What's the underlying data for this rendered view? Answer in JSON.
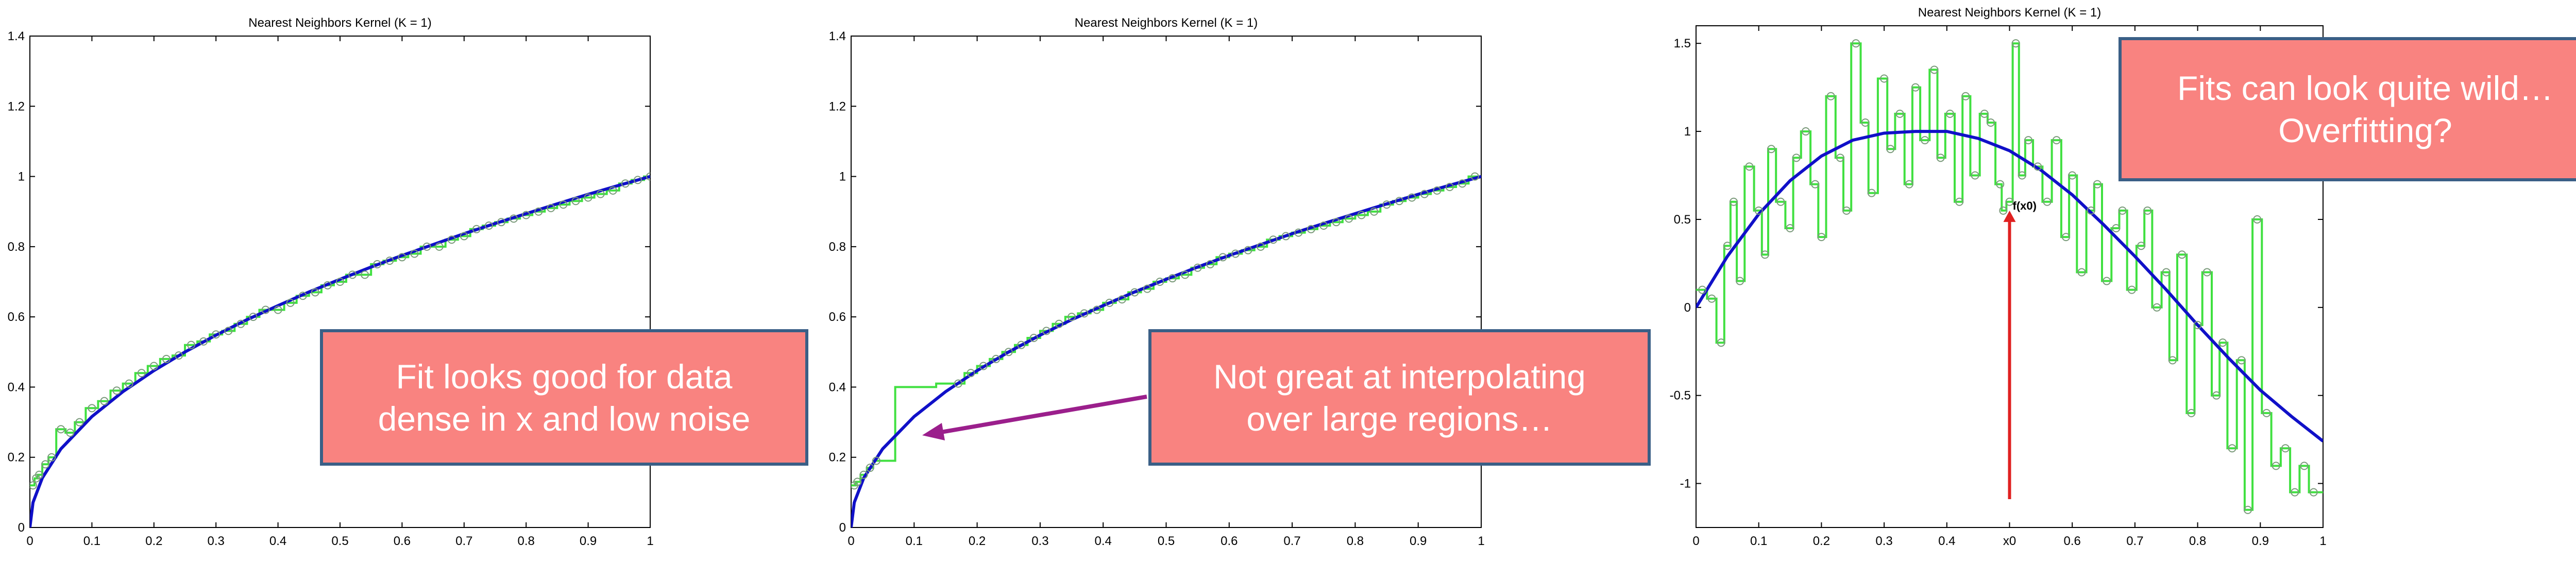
{
  "chart_data": [
    {
      "type": "line",
      "title": "Nearest Neighbors Kernel (K = 1)",
      "xlim": [
        0,
        1
      ],
      "ylim": [
        0,
        1.4
      ],
      "xticks": [
        "0",
        "0.1",
        "0.2",
        "0.3",
        "0.4",
        "0.5",
        "0.6",
        "0.7",
        "0.8",
        "0.9",
        "1"
      ],
      "yticks": [
        "0",
        "0.2",
        "0.4",
        "0.6",
        "0.8",
        "1",
        "1.2",
        "1.4"
      ],
      "grid": false,
      "series": [
        {
          "role": "true-function",
          "color": "#1010c8",
          "x": [
            0,
            0.005,
            0.02,
            0.05,
            0.1,
            0.15,
            0.2,
            0.25,
            0.3,
            0.35,
            0.4,
            0.45,
            0.5,
            0.55,
            0.6,
            0.65,
            0.7,
            0.75,
            0.8,
            0.85,
            0.9,
            0.95,
            1.0
          ],
          "y": [
            0,
            0.071,
            0.141,
            0.224,
            0.316,
            0.387,
            0.447,
            0.5,
            0.548,
            0.592,
            0.632,
            0.671,
            0.707,
            0.742,
            0.775,
            0.806,
            0.837,
            0.866,
            0.894,
            0.922,
            0.949,
            0.975,
            1.0
          ]
        },
        {
          "role": "observations",
          "color": "#40e040",
          "x": [
            0.005,
            0.01,
            0.015,
            0.025,
            0.035,
            0.05,
            0.065,
            0.08,
            0.1,
            0.12,
            0.14,
            0.16,
            0.18,
            0.2,
            0.22,
            0.24,
            0.26,
            0.28,
            0.3,
            0.32,
            0.34,
            0.36,
            0.38,
            0.4,
            0.42,
            0.44,
            0.46,
            0.48,
            0.5,
            0.52,
            0.54,
            0.56,
            0.58,
            0.6,
            0.62,
            0.64,
            0.66,
            0.68,
            0.7,
            0.72,
            0.74,
            0.76,
            0.78,
            0.8,
            0.82,
            0.84,
            0.86,
            0.88,
            0.9,
            0.92,
            0.94,
            0.96,
            0.98,
            1.0
          ],
          "y": [
            0.12,
            0.14,
            0.15,
            0.18,
            0.2,
            0.28,
            0.27,
            0.3,
            0.34,
            0.36,
            0.39,
            0.41,
            0.44,
            0.46,
            0.48,
            0.49,
            0.52,
            0.53,
            0.55,
            0.56,
            0.58,
            0.6,
            0.62,
            0.62,
            0.64,
            0.66,
            0.67,
            0.69,
            0.7,
            0.72,
            0.72,
            0.75,
            0.76,
            0.77,
            0.78,
            0.8,
            0.8,
            0.82,
            0.83,
            0.85,
            0.86,
            0.87,
            0.88,
            0.89,
            0.9,
            0.91,
            0.92,
            0.93,
            0.94,
            0.95,
            0.96,
            0.98,
            0.99,
            1.0
          ]
        },
        {
          "role": "fit",
          "color": "#40e040",
          "step": true,
          "x": [
            0.005,
            0.01,
            0.015,
            0.025,
            0.035,
            0.05,
            0.065,
            0.08,
            0.1,
            0.12,
            0.14,
            0.16,
            0.18,
            0.2,
            0.22,
            0.24,
            0.26,
            0.28,
            0.3,
            0.32,
            0.34,
            0.36,
            0.38,
            0.4,
            0.42,
            0.44,
            0.46,
            0.48,
            0.5,
            0.52,
            0.54,
            0.56,
            0.58,
            0.6,
            0.62,
            0.64,
            0.66,
            0.68,
            0.7,
            0.72,
            0.74,
            0.76,
            0.78,
            0.8,
            0.82,
            0.84,
            0.86,
            0.88,
            0.9,
            0.92,
            0.94,
            0.96,
            0.98,
            1.0
          ],
          "y": [
            0.12,
            0.14,
            0.15,
            0.18,
            0.2,
            0.28,
            0.27,
            0.3,
            0.34,
            0.36,
            0.39,
            0.41,
            0.44,
            0.46,
            0.48,
            0.49,
            0.52,
            0.53,
            0.55,
            0.56,
            0.58,
            0.6,
            0.62,
            0.62,
            0.64,
            0.66,
            0.67,
            0.69,
            0.7,
            0.72,
            0.72,
            0.75,
            0.76,
            0.77,
            0.78,
            0.8,
            0.8,
            0.82,
            0.83,
            0.85,
            0.86,
            0.87,
            0.88,
            0.89,
            0.9,
            0.91,
            0.92,
            0.93,
            0.94,
            0.95,
            0.96,
            0.98,
            0.99,
            1.0
          ]
        }
      ]
    },
    {
      "type": "line",
      "title": "Nearest Neighbors Kernel (K = 1)",
      "xlim": [
        0,
        1
      ],
      "ylim": [
        0,
        1.4
      ],
      "xticks": [
        "0",
        "0.1",
        "0.2",
        "0.3",
        "0.4",
        "0.5",
        "0.6",
        "0.7",
        "0.8",
        "0.9",
        "1"
      ],
      "yticks": [
        "0",
        "0.2",
        "0.4",
        "0.6",
        "0.8",
        "1",
        "1.2",
        "1.4"
      ],
      "grid": false,
      "series": [
        {
          "role": "true-function",
          "color": "#1010c8",
          "x": [
            0,
            0.005,
            0.02,
            0.05,
            0.1,
            0.15,
            0.2,
            0.25,
            0.3,
            0.35,
            0.4,
            0.45,
            0.5,
            0.55,
            0.6,
            0.65,
            0.7,
            0.75,
            0.8,
            0.85,
            0.9,
            0.95,
            1.0
          ],
          "y": [
            0,
            0.071,
            0.141,
            0.224,
            0.316,
            0.387,
            0.447,
            0.5,
            0.548,
            0.592,
            0.632,
            0.671,
            0.707,
            0.742,
            0.775,
            0.806,
            0.837,
            0.866,
            0.894,
            0.922,
            0.949,
            0.975,
            1.0
          ]
        },
        {
          "role": "observations",
          "color": "#40e040",
          "x": [
            0.005,
            0.01,
            0.02,
            0.03,
            0.04,
            0.17,
            0.19,
            0.21,
            0.23,
            0.25,
            0.27,
            0.29,
            0.31,
            0.33,
            0.35,
            0.37,
            0.39,
            0.41,
            0.43,
            0.45,
            0.47,
            0.49,
            0.51,
            0.53,
            0.55,
            0.57,
            0.59,
            0.61,
            0.63,
            0.65,
            0.67,
            0.69,
            0.71,
            0.73,
            0.75,
            0.77,
            0.79,
            0.81,
            0.83,
            0.85,
            0.87,
            0.89,
            0.91,
            0.93,
            0.95,
            0.97,
            0.99
          ],
          "y": [
            0.12,
            0.13,
            0.15,
            0.17,
            0.19,
            0.41,
            0.44,
            0.46,
            0.48,
            0.5,
            0.52,
            0.54,
            0.56,
            0.58,
            0.6,
            0.61,
            0.62,
            0.64,
            0.65,
            0.67,
            0.68,
            0.7,
            0.71,
            0.72,
            0.74,
            0.75,
            0.77,
            0.78,
            0.79,
            0.8,
            0.82,
            0.83,
            0.84,
            0.85,
            0.86,
            0.87,
            0.88,
            0.89,
            0.9,
            0.92,
            0.93,
            0.94,
            0.95,
            0.96,
            0.97,
            0.98,
            1.0
          ]
        },
        {
          "role": "fit",
          "color": "#40e040",
          "step": true,
          "x": [
            0.005,
            0.01,
            0.02,
            0.03,
            0.04,
            0.1,
            0.17,
            0.19,
            0.21,
            0.23,
            0.25,
            0.27,
            0.29,
            0.31,
            0.33,
            0.35,
            0.37,
            0.39,
            0.41,
            0.43,
            0.45,
            0.47,
            0.49,
            0.51,
            0.53,
            0.55,
            0.57,
            0.59,
            0.61,
            0.63,
            0.65,
            0.67,
            0.69,
            0.71,
            0.73,
            0.75,
            0.77,
            0.79,
            0.81,
            0.83,
            0.85,
            0.87,
            0.89,
            0.91,
            0.93,
            0.95,
            0.97,
            0.99
          ],
          "y": [
            0.12,
            0.13,
            0.15,
            0.17,
            0.19,
            0.4,
            0.41,
            0.44,
            0.46,
            0.48,
            0.5,
            0.52,
            0.54,
            0.56,
            0.58,
            0.6,
            0.61,
            0.62,
            0.64,
            0.65,
            0.67,
            0.68,
            0.7,
            0.71,
            0.72,
            0.74,
            0.75,
            0.77,
            0.78,
            0.79,
            0.8,
            0.82,
            0.83,
            0.84,
            0.85,
            0.86,
            0.87,
            0.88,
            0.89,
            0.9,
            0.92,
            0.93,
            0.94,
            0.95,
            0.96,
            0.97,
            0.98,
            1.0
          ]
        }
      ]
    },
    {
      "type": "line",
      "title": "Nearest Neighbors Kernel (K = 1)",
      "xlim": [
        0,
        1
      ],
      "ylim": [
        -1.25,
        1.6
      ],
      "xticks": [
        "0",
        "0.1",
        "0.2",
        "0.3",
        "0.4",
        "x0",
        "0.6",
        "0.7",
        "0.8",
        "0.9",
        "1"
      ],
      "yticks": [
        "-1",
        "-0.5",
        "0",
        "0.5",
        "1",
        "1.5"
      ],
      "grid": false,
      "query_point": {
        "x": 0.5,
        "y": 0.55,
        "label": "f(x0)",
        "color": "#e02020"
      },
      "series": [
        {
          "role": "true-function",
          "color": "#1010c8",
          "x": [
            0,
            0.05,
            0.1,
            0.15,
            0.2,
            0.25,
            0.3,
            0.35,
            0.4,
            0.45,
            0.5,
            0.55,
            0.6,
            0.65,
            0.7,
            0.75,
            0.8,
            0.85,
            0.9,
            0.95,
            1.0
          ],
          "y": [
            0,
            0.29,
            0.53,
            0.72,
            0.86,
            0.95,
            0.99,
            1.0,
            1.0,
            0.96,
            0.89,
            0.78,
            0.64,
            0.47,
            0.29,
            0.1,
            -0.1,
            -0.29,
            -0.47,
            -0.62,
            -0.76
          ]
        },
        {
          "role": "observations",
          "color": "#40e040",
          "x": [
            0.01,
            0.025,
            0.04,
            0.05,
            0.06,
            0.07,
            0.085,
            0.1,
            0.11,
            0.12,
            0.135,
            0.15,
            0.16,
            0.175,
            0.19,
            0.2,
            0.215,
            0.23,
            0.24,
            0.255,
            0.27,
            0.28,
            0.3,
            0.31,
            0.325,
            0.34,
            0.35,
            0.365,
            0.38,
            0.39,
            0.405,
            0.42,
            0.43,
            0.445,
            0.46,
            0.47,
            0.485,
            0.49,
            0.5,
            0.51,
            0.52,
            0.53,
            0.545,
            0.56,
            0.575,
            0.59,
            0.6,
            0.615,
            0.63,
            0.64,
            0.655,
            0.67,
            0.68,
            0.695,
            0.71,
            0.72,
            0.735,
            0.75,
            0.76,
            0.775,
            0.79,
            0.8,
            0.815,
            0.83,
            0.84,
            0.855,
            0.87,
            0.88,
            0.895,
            0.91,
            0.925,
            0.94,
            0.955,
            0.97,
            0.985
          ],
          "y": [
            0.1,
            0.05,
            -0.2,
            0.35,
            0.6,
            0.15,
            0.8,
            0.55,
            0.3,
            0.9,
            0.6,
            0.45,
            0.85,
            1.0,
            0.7,
            0.4,
            1.2,
            0.85,
            0.55,
            1.5,
            1.05,
            0.65,
            1.3,
            0.9,
            1.1,
            0.7,
            1.25,
            0.95,
            1.35,
            0.85,
            1.1,
            0.6,
            1.2,
            0.75,
            1.1,
            1.05,
            0.7,
            0.55,
            0.6,
            1.5,
            0.75,
            0.95,
            0.8,
            0.6,
            0.95,
            0.4,
            0.75,
            0.2,
            0.55,
            0.7,
            0.15,
            0.45,
            0.55,
            0.1,
            0.35,
            0.55,
            0.0,
            0.2,
            -0.3,
            0.3,
            -0.6,
            -0.1,
            0.2,
            -0.5,
            -0.2,
            -0.8,
            -0.3,
            -1.15,
            0.5,
            -0.6,
            -0.9,
            -0.8,
            -1.05,
            -0.9,
            -1.05
          ]
        },
        {
          "role": "fit",
          "color": "#40e040",
          "step": true,
          "x": [
            0.01,
            0.025,
            0.04,
            0.05,
            0.06,
            0.07,
            0.085,
            0.1,
            0.11,
            0.12,
            0.135,
            0.15,
            0.16,
            0.175,
            0.19,
            0.2,
            0.215,
            0.23,
            0.24,
            0.255,
            0.27,
            0.28,
            0.3,
            0.31,
            0.325,
            0.34,
            0.35,
            0.365,
            0.38,
            0.39,
            0.405,
            0.42,
            0.43,
            0.445,
            0.46,
            0.47,
            0.485,
            0.49,
            0.5,
            0.51,
            0.52,
            0.53,
            0.545,
            0.56,
            0.575,
            0.59,
            0.6,
            0.615,
            0.63,
            0.64,
            0.655,
            0.67,
            0.68,
            0.695,
            0.71,
            0.72,
            0.735,
            0.75,
            0.76,
            0.775,
            0.79,
            0.8,
            0.815,
            0.83,
            0.84,
            0.855,
            0.87,
            0.88,
            0.895,
            0.91,
            0.925,
            0.94,
            0.955,
            0.97,
            0.985
          ],
          "y": [
            0.1,
            0.05,
            -0.2,
            0.35,
            0.6,
            0.15,
            0.8,
            0.55,
            0.3,
            0.9,
            0.6,
            0.45,
            0.85,
            1.0,
            0.7,
            0.4,
            1.2,
            0.85,
            0.55,
            1.5,
            1.05,
            0.65,
            1.3,
            0.9,
            1.1,
            0.7,
            1.25,
            0.95,
            1.35,
            0.85,
            1.1,
            0.6,
            1.2,
            0.75,
            1.1,
            1.05,
            0.7,
            0.55,
            0.6,
            1.5,
            0.75,
            0.95,
            0.8,
            0.6,
            0.95,
            0.4,
            0.75,
            0.2,
            0.55,
            0.7,
            0.15,
            0.45,
            0.55,
            0.1,
            0.35,
            0.55,
            0.0,
            0.2,
            -0.3,
            0.3,
            -0.6,
            -0.1,
            0.2,
            -0.5,
            -0.2,
            -0.8,
            -0.3,
            -1.15,
            0.5,
            -0.6,
            -0.9,
            -0.8,
            -1.05,
            -0.9,
            -1.05
          ]
        }
      ]
    }
  ],
  "callouts": [
    {
      "lines": [
        "Fit looks good for data",
        "dense in x and low noise"
      ]
    },
    {
      "lines": [
        "Not great at interpolating",
        "over large regions…"
      ]
    },
    {
      "lines": [
        "Fits can look quite wild…",
        "Overfitting?"
      ]
    }
  ],
  "colors": {
    "callout_fill": "#f98380",
    "callout_border": "#3a5f86",
    "arrow": "#9b1f8c",
    "true_curve": "#1010c8",
    "fit": "#40e040",
    "query": "#e02020"
  }
}
